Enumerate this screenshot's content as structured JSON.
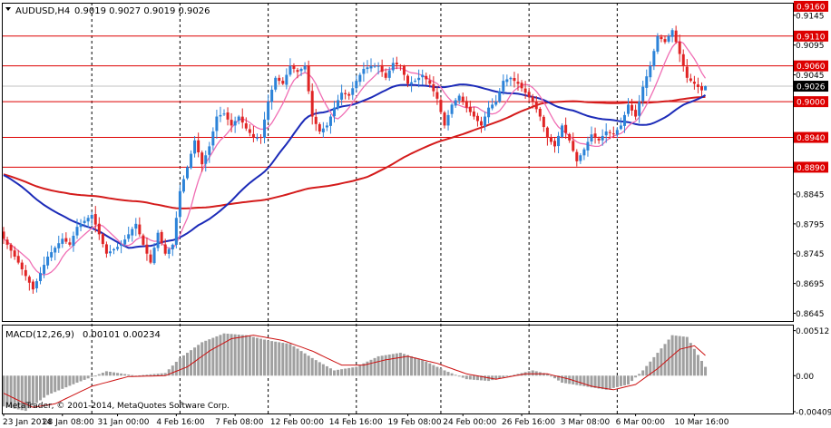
{
  "window": {
    "title": "AUDUSD,H4",
    "ohlc": "0.9019 0.9027 0.9019 0.9026"
  },
  "colors": {
    "bull": "#2c83d8",
    "bear": "#e02424",
    "ma_fast": "#f06eb4",
    "ma_mid": "#1c2bb8",
    "ma_slow": "#d41c1c",
    "hline": "#dd0000",
    "macd_hist": "#a0a0a0",
    "macd_signal": "#cc1010",
    "current_price_box": "#000000"
  },
  "chart_data": [
    {
      "type": "candlestick",
      "symbol": "AUDUSD",
      "timeframe": "H4",
      "ylim": [
        0.8632,
        0.9166
      ],
      "price_ticks": [
        0.9145,
        0.9095,
        0.9045,
        0.8845,
        0.8795,
        0.8745,
        0.8695,
        0.8645
      ],
      "price_labels": [
        {
          "text": "0.9160",
          "value": 0.916,
          "style": "red"
        },
        {
          "text": "0.9110",
          "value": 0.911,
          "style": "red"
        },
        {
          "text": "0.9060",
          "value": 0.906,
          "style": "red"
        },
        {
          "text": "0.9026",
          "value": 0.9026,
          "style": "current"
        },
        {
          "text": "0.9000",
          "value": 0.9,
          "style": "red"
        },
        {
          "text": "0.8940",
          "value": 0.894,
          "style": "red"
        },
        {
          "text": "0.8890",
          "value": 0.889,
          "style": "red"
        }
      ],
      "horizontal_levels": [
        0.911,
        0.906,
        0.9,
        0.894,
        0.889
      ],
      "time_labels": [
        "23 Jan 2014",
        "28 Jan 08:00",
        "31 Jan 00:00",
        "4 Feb 16:00",
        "7 Feb 08:00",
        "12 Feb 00:00",
        "14 Feb 16:00",
        "19 Feb 08:00",
        "24 Feb 00:00",
        "26 Feb 16:00",
        "3 Mar 08:00",
        "6 Mar 00:00",
        "10 Mar 16:00"
      ],
      "day_separators": 7,
      "close_path": [
        [
          0,
          0.877
        ],
        [
          4,
          0.873
        ],
        [
          8,
          0.8685
        ],
        [
          12,
          0.874
        ],
        [
          16,
          0.877
        ],
        [
          18,
          0.876
        ],
        [
          20,
          0.879
        ],
        [
          24,
          0.881
        ],
        [
          28,
          0.8745
        ],
        [
          32,
          0.876
        ],
        [
          36,
          0.8795
        ],
        [
          38,
          0.876
        ],
        [
          40,
          0.873
        ],
        [
          42,
          0.878
        ],
        [
          44,
          0.8745
        ],
        [
          46,
          0.876
        ],
        [
          48,
          0.885
        ],
        [
          50,
          0.889
        ],
        [
          52,
          0.8935
        ],
        [
          54,
          0.8895
        ],
        [
          56,
          0.8925
        ],
        [
          58,
          0.8975
        ],
        [
          60,
          0.898
        ],
        [
          62,
          0.896
        ],
        [
          64,
          0.8975
        ],
        [
          66,
          0.8955
        ],
        [
          68,
          0.894
        ],
        [
          70,
          0.894
        ],
        [
          72,
          0.9
        ],
        [
          74,
          0.904
        ],
        [
          76,
          0.903
        ],
        [
          78,
          0.906
        ],
        [
          80,
          0.905
        ],
        [
          82,
          0.906
        ],
        [
          84,
          0.8975
        ],
        [
          86,
          0.895
        ],
        [
          88,
          0.896
        ],
        [
          90,
          0.899
        ],
        [
          92,
          0.9015
        ],
        [
          94,
          0.901
        ],
        [
          96,
          0.9035
        ],
        [
          98,
          0.9055
        ],
        [
          100,
          0.906
        ],
        [
          102,
          0.906
        ],
        [
          104,
          0.904
        ],
        [
          106,
          0.9065
        ],
        [
          108,
          0.906
        ],
        [
          110,
          0.903
        ],
        [
          112,
          0.9035
        ],
        [
          114,
          0.9045
        ],
        [
          116,
          0.903
        ],
        [
          118,
          0.9005
        ],
        [
          120,
          0.896
        ],
        [
          122,
          0.8995
        ],
        [
          124,
          0.901
        ],
        [
          126,
          0.899
        ],
        [
          128,
          0.8975
        ],
        [
          130,
          0.896
        ],
        [
          132,
          0.899
        ],
        [
          134,
          0.9
        ],
        [
          136,
          0.9035
        ],
        [
          138,
          0.904
        ],
        [
          140,
          0.903
        ],
        [
          142,
          0.9015
        ],
        [
          144,
          0.9
        ],
        [
          146,
          0.8975
        ],
        [
          148,
          0.894
        ],
        [
          150,
          0.8925
        ],
        [
          152,
          0.896
        ],
        [
          154,
          0.8935
        ],
        [
          156,
          0.89
        ],
        [
          158,
          0.892
        ],
        [
          160,
          0.8945
        ],
        [
          162,
          0.8935
        ],
        [
          164,
          0.895
        ],
        [
          166,
          0.8945
        ],
        [
          168,
          0.896
        ],
        [
          170,
          0.8995
        ],
        [
          172,
          0.8975
        ],
        [
          174,
          0.9025
        ],
        [
          176,
          0.906
        ],
        [
          178,
          0.911
        ],
        [
          180,
          0.91
        ],
        [
          182,
          0.912
        ],
        [
          184,
          0.908
        ],
        [
          186,
          0.904
        ],
        [
          188,
          0.903
        ],
        [
          190,
          0.9019
        ],
        [
          191,
          0.9026
        ]
      ]
    },
    {
      "type": "bar",
      "title": "MACD(12,26,9)",
      "values_text": "0.00101 0.00234",
      "ylim": [
        -0.0043,
        0.0058
      ],
      "ticks": [
        {
          "text": "0.00512",
          "value": 0.00512
        },
        {
          "text": "0.00",
          "value": 0.0
        },
        {
          "text": "-0.00409",
          "value": -0.00409
        }
      ],
      "hist_path": [
        [
          0,
          -0.0035
        ],
        [
          6,
          -0.004
        ],
        [
          12,
          -0.0022
        ],
        [
          20,
          -0.0008
        ],
        [
          28,
          0.0005
        ],
        [
          36,
          0.0
        ],
        [
          44,
          0.0003
        ],
        [
          48,
          0.002
        ],
        [
          54,
          0.0038
        ],
        [
          60,
          0.0048
        ],
        [
          66,
          0.0046
        ],
        [
          72,
          0.004
        ],
        [
          78,
          0.0036
        ],
        [
          84,
          0.002
        ],
        [
          90,
          0.0006
        ],
        [
          96,
          0.001
        ],
        [
          102,
          0.0022
        ],
        [
          108,
          0.0026
        ],
        [
          114,
          0.0018
        ],
        [
          120,
          0.0006
        ],
        [
          126,
          -0.0004
        ],
        [
          132,
          -0.0006
        ],
        [
          138,
          0.0
        ],
        [
          144,
          0.0006
        ],
        [
          148,
          0.0002
        ],
        [
          152,
          -0.0008
        ],
        [
          158,
          -0.0012
        ],
        [
          164,
          -0.0016
        ],
        [
          170,
          -0.001
        ],
        [
          174,
          0.0006
        ],
        [
          178,
          0.0026
        ],
        [
          182,
          0.0046
        ],
        [
          186,
          0.0044
        ],
        [
          191,
          0.001
        ]
      ],
      "signal_path": [
        [
          0,
          -0.002
        ],
        [
          8,
          -0.0036
        ],
        [
          14,
          -0.0032
        ],
        [
          24,
          -0.0012
        ],
        [
          34,
          -0.0001
        ],
        [
          44,
          0.0
        ],
        [
          50,
          0.001
        ],
        [
          56,
          0.0028
        ],
        [
          62,
          0.0042
        ],
        [
          68,
          0.0046
        ],
        [
          76,
          0.004
        ],
        [
          84,
          0.0028
        ],
        [
          92,
          0.0012
        ],
        [
          98,
          0.0012
        ],
        [
          104,
          0.0018
        ],
        [
          110,
          0.0022
        ],
        [
          118,
          0.0014
        ],
        [
          126,
          0.0002
        ],
        [
          134,
          -0.0004
        ],
        [
          142,
          0.0002
        ],
        [
          148,
          0.0002
        ],
        [
          154,
          -0.0004
        ],
        [
          160,
          -0.0012
        ],
        [
          166,
          -0.0016
        ],
        [
          172,
          -0.001
        ],
        [
          178,
          0.0008
        ],
        [
          184,
          0.003
        ],
        [
          188,
          0.0034
        ],
        [
          191,
          0.0023
        ]
      ]
    }
  ],
  "copyright": "MetaTrader, © 2001-2014, MetaQuotes Software Corp."
}
